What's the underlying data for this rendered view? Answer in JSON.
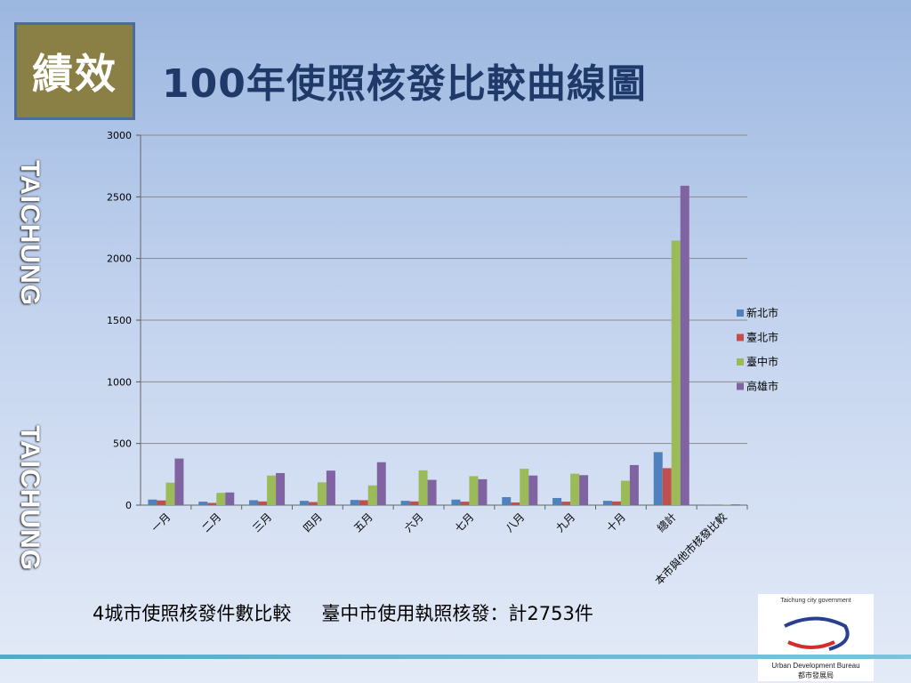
{
  "badge": "績效",
  "title": "100年使照核發比較曲線圖",
  "side_text": [
    "TAICHUNG",
    "TAICHUNG"
  ],
  "caption": {
    "left": "4城市使照核發件數比較",
    "right": "臺中市使用執照核發：計2753件"
  },
  "logo": {
    "top_text": "Taichung city government",
    "name_en": "Urban Development Bureau",
    "name_zh": "都市發展局"
  },
  "colors": {
    "新北市": "#4f81bd",
    "臺北市": "#c0504d",
    "臺中市": "#9bbb59",
    "高雄市": "#8064a2"
  },
  "chart_data": {
    "type": "bar",
    "categories": [
      "一月",
      "二月",
      "三月",
      "四月",
      "五月",
      "六月",
      "七月",
      "八月",
      "九月",
      "十月",
      "總計",
      "本市與他市核發比較"
    ],
    "series": [
      {
        "name": "新北市",
        "values": [
          45,
          28,
          40,
          35,
          42,
          35,
          45,
          65,
          58,
          35,
          430,
          3
        ]
      },
      {
        "name": "臺北市",
        "values": [
          38,
          18,
          30,
          25,
          40,
          30,
          28,
          22,
          28,
          30,
          300,
          2
        ]
      },
      {
        "name": "臺中市",
        "values": [
          182,
          100,
          240,
          185,
          160,
          282,
          235,
          295,
          255,
          198,
          2145,
          5
        ]
      },
      {
        "name": "高雄市",
        "values": [
          378,
          103,
          260,
          280,
          348,
          205,
          210,
          240,
          243,
          325,
          2590,
          6
        ]
      }
    ],
    "yticks": [
      0,
      500,
      1000,
      1500,
      2000,
      2500,
      3000
    ],
    "ylim": [
      0,
      3000
    ],
    "grid": true,
    "legend": "right"
  }
}
